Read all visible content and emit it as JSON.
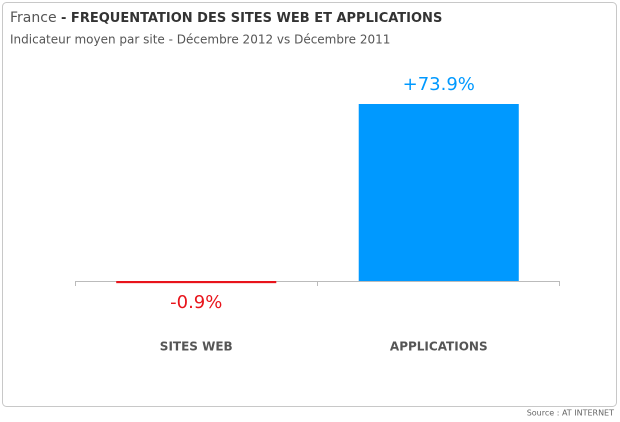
{
  "chart_data": {
    "type": "bar",
    "title_country": "France",
    "title": "- FREQUENTATION DES SITES WEB ET APPLICATIONS",
    "subtitle": "Indicateur moyen par site - Décembre 2012 vs Décembre 2011",
    "categories": [
      "SITES WEB",
      "APPLICATIONS"
    ],
    "values": [
      -0.9,
      73.9
    ],
    "value_labels": [
      "-0.9%",
      "+73.9%"
    ],
    "colors": [
      "#e8141b",
      "#0099ff"
    ],
    "source": "Source : AT INTERNET"
  }
}
